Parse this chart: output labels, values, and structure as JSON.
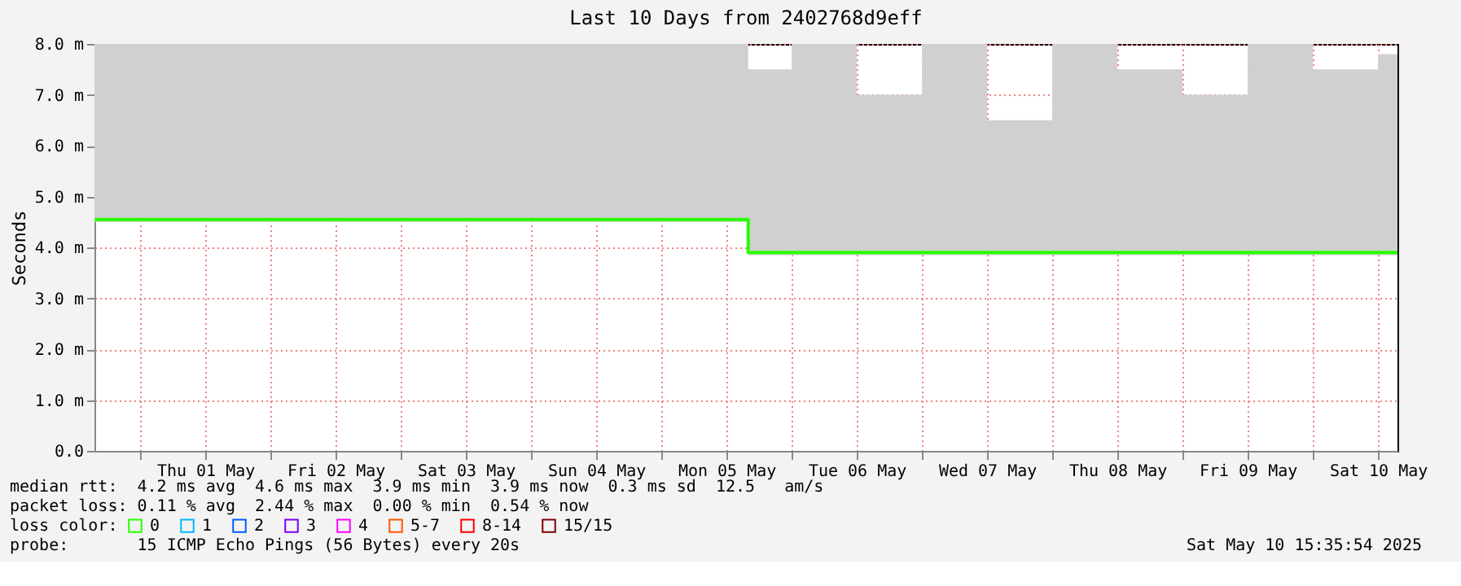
{
  "chart_data": {
    "type": "step",
    "title": "Last 10 Days from 2402768d9eff",
    "ylabel": "Seconds",
    "xlim": [
      "2025-04-30T15:35",
      "2025-05-10T15:35"
    ],
    "xticks": [
      {
        "value": "2025-05-01T00:00",
        "label": null
      },
      {
        "value": "2025-05-01T12:00",
        "label": "Thu 01 May"
      },
      {
        "value": "2025-05-02T00:00",
        "label": null
      },
      {
        "value": "2025-05-02T12:00",
        "label": "Fri 02 May"
      },
      {
        "value": "2025-05-03T00:00",
        "label": null
      },
      {
        "value": "2025-05-03T12:00",
        "label": "Sat 03 May"
      },
      {
        "value": "2025-05-04T00:00",
        "label": null
      },
      {
        "value": "2025-05-04T12:00",
        "label": "Sun 04 May"
      },
      {
        "value": "2025-05-05T00:00",
        "label": null
      },
      {
        "value": "2025-05-05T12:00",
        "label": "Mon 05 May"
      },
      {
        "value": "2025-05-06T00:00",
        "label": null
      },
      {
        "value": "2025-05-06T12:00",
        "label": "Tue 06 May"
      },
      {
        "value": "2025-05-07T00:00",
        "label": null
      },
      {
        "value": "2025-05-07T12:00",
        "label": "Wed 07 May"
      },
      {
        "value": "2025-05-08T00:00",
        "label": null
      },
      {
        "value": "2025-05-08T12:00",
        "label": "Thu 08 May"
      },
      {
        "value": "2025-05-09T00:00",
        "label": null
      },
      {
        "value": "2025-05-09T12:00",
        "label": "Fri 09 May"
      },
      {
        "value": "2025-05-10T00:00",
        "label": null
      },
      {
        "value": "2025-05-10T12:00",
        "label": "Sat 10 May"
      }
    ],
    "ylim": [
      0,
      8
    ],
    "yticks": [
      {
        "value": 0,
        "label": "0.0"
      },
      {
        "value": 1,
        "label": "1.0 m"
      },
      {
        "value": 2,
        "label": "2.0 m"
      },
      {
        "value": 3,
        "label": "3.0 m"
      },
      {
        "value": 4,
        "label": "4.0 m"
      },
      {
        "value": 5,
        "label": "5.0 m"
      },
      {
        "value": 6,
        "label": "6.0 m"
      },
      {
        "value": 7,
        "label": "7.0 m"
      },
      {
        "value": 8,
        "label": "8.0 m"
      }
    ],
    "grid": true,
    "legend": "bottom",
    "legend_title": "loss color:",
    "series": [
      {
        "name": "0",
        "color": "#26ff00",
        "x": [
          "2025-04-30T15:35",
          "2025-05-01T00:00",
          "2025-05-01T12:00",
          "2025-05-02T00:00",
          "2025-05-02T12:00",
          "2025-05-03T00:00",
          "2025-05-03T12:00",
          "2025-05-04T00:00",
          "2025-05-04T12:00",
          "2025-05-05T00:00",
          "2025-05-05T12:00",
          "2025-05-05T16:00",
          "2025-05-06T00:00",
          "2025-05-06T12:00",
          "2025-05-07T00:00",
          "2025-05-07T12:00",
          "2025-05-08T00:00",
          "2025-05-08T12:00",
          "2025-05-09T00:00",
          "2025-05-09T12:00",
          "2025-05-10T00:00",
          "2025-05-10T12:00",
          "2025-05-10T15:35"
        ],
        "values": [
          4.55,
          4.55,
          4.55,
          4.55,
          4.55,
          4.55,
          4.55,
          4.55,
          4.55,
          4.55,
          4.55,
          3.9,
          3.9,
          3.9,
          3.9,
          3.9,
          3.9,
          3.9,
          3.9,
          3.9,
          3.9,
          3.9,
          3.9
        ],
        "lower": [
          4.5,
          4.5,
          4.5,
          4.5,
          4.5,
          4.5,
          4.5,
          4.5,
          4.5,
          4.5,
          4.5,
          3.85,
          3.85,
          3.85,
          3.85,
          3.85,
          3.85,
          3.85,
          3.85,
          3.85,
          3.85,
          3.85,
          3.85
        ],
        "upper": [
          8,
          8,
          8,
          8,
          8,
          8,
          8,
          8,
          8,
          8,
          8,
          7.5,
          8,
          7,
          8,
          6.5,
          8,
          7.5,
          7,
          8,
          7.5,
          7.8,
          7.8
        ]
      },
      {
        "name": "1",
        "color": "#00b8ff"
      },
      {
        "name": "2",
        "color": "#0059ff"
      },
      {
        "name": "3",
        "color": "#7e00ff"
      },
      {
        "name": "4",
        "color": "#ff00ff"
      },
      {
        "name": "5-7",
        "color": "#ff5500"
      },
      {
        "name": "8-14",
        "color": "#ff0000"
      },
      {
        "name": "15/15",
        "color": "#7f0000"
      }
    ],
    "annotations": [
      "median rtt:  4.2 ms avg  4.6 ms max  3.9 ms min  3.9 ms now  0.3 ms sd  12.5   am/s",
      "packet loss: 0.11 % avg  2.44 % max  0.00 % min  0.54 % now",
      "probe:       15 ICMP Echo Pings (56 Bytes) every 20s",
      "Sat May 10 15:35:54 2025"
    ]
  }
}
